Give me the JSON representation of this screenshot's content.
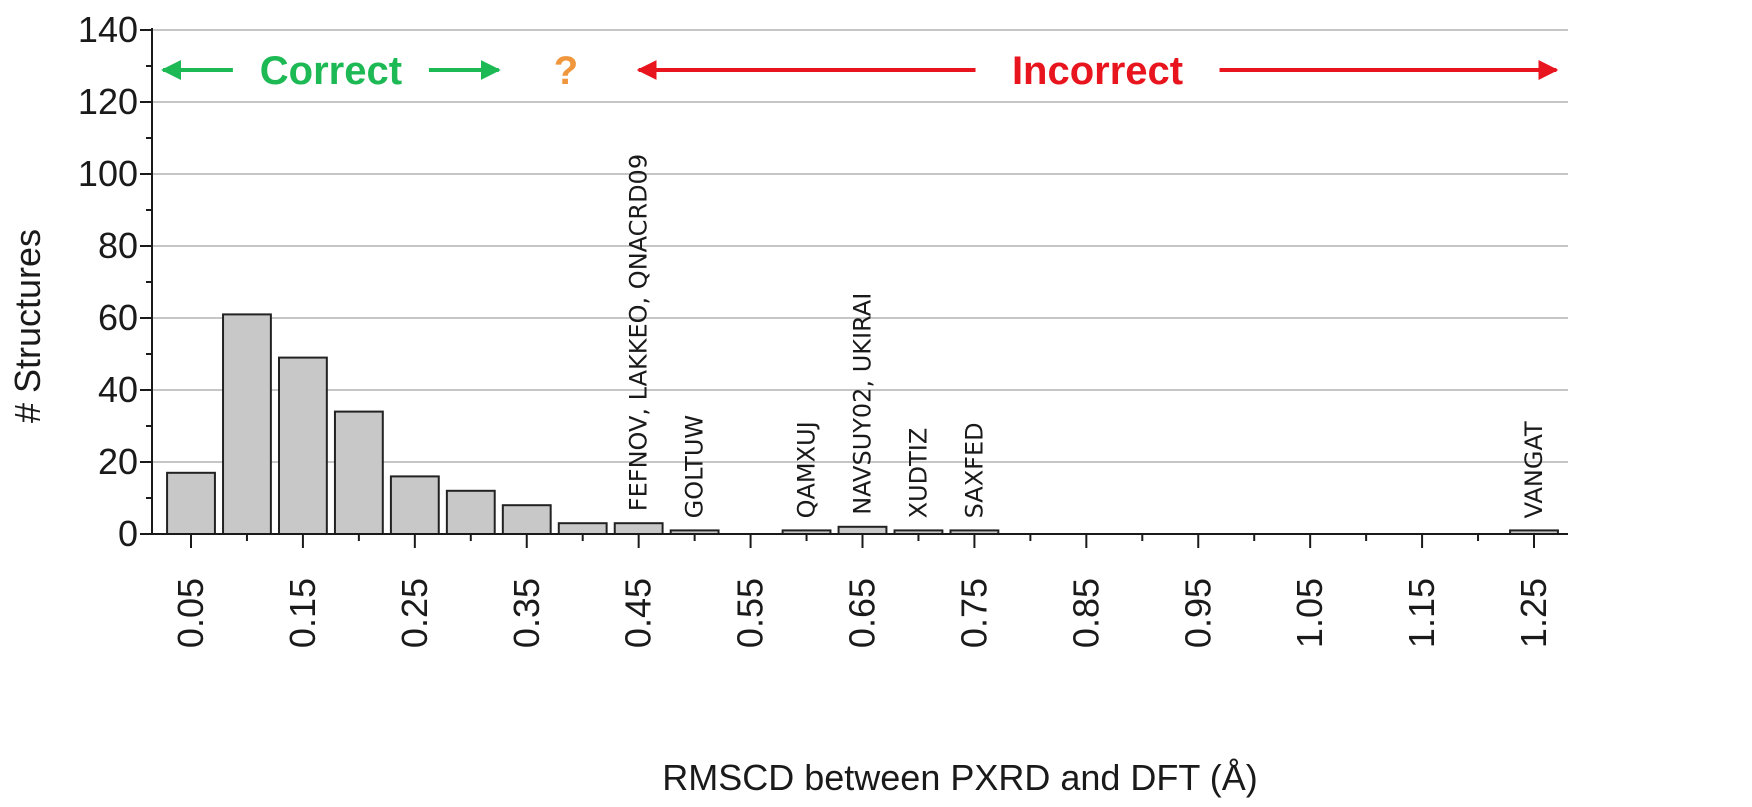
{
  "chart_data": {
    "type": "bar",
    "xlabel": "RMSCD between PXRD and DFT (Å)",
    "ylabel": "# Structures",
    "ylim": [
      0,
      140
    ],
    "yticks": [
      "0",
      "20",
      "40",
      "60",
      "80",
      "100",
      "120",
      "140"
    ],
    "xtick_labels": [
      "0.05",
      "0.15",
      "0.25",
      "0.35",
      "0.45",
      "0.55",
      "0.65",
      "0.75",
      "0.85",
      "0.95",
      "1.05",
      "1.15",
      "1.25"
    ],
    "grid": "horizontal",
    "bar_color": "#c8c8c8",
    "bars": [
      {
        "x": 0.05,
        "value": 17
      },
      {
        "x": 0.1,
        "value": 61
      },
      {
        "x": 0.15,
        "value": 49
      },
      {
        "x": 0.2,
        "value": 34
      },
      {
        "x": 0.25,
        "value": 16
      },
      {
        "x": 0.3,
        "value": 12
      },
      {
        "x": 0.35,
        "value": 8
      },
      {
        "x": 0.4,
        "value": 3
      },
      {
        "x": 0.45,
        "value": 3,
        "label": "FEFNOV, LAKKEO, QNACRD09"
      },
      {
        "x": 0.5,
        "value": 1,
        "label": "GOLTUW"
      },
      {
        "x": 0.6,
        "value": 1,
        "label": "QAMXUJ"
      },
      {
        "x": 0.65,
        "value": 2,
        "label": "NAVSUY02, UKIRAI"
      },
      {
        "x": 0.7,
        "value": 1,
        "label": "XUDTIZ"
      },
      {
        "x": 0.75,
        "value": 1,
        "label": "SAXFED"
      },
      {
        "x": 1.25,
        "value": 1,
        "label": "VANGAT"
      }
    ],
    "annotations": [
      {
        "text": "Correct",
        "color": "#1db954",
        "from_x": 0.025,
        "to_x": 0.325
      },
      {
        "text": "?",
        "color": "#f0963c",
        "at_x": 0.385
      },
      {
        "text": "Incorrect",
        "color": "#e8141e",
        "from_x": 0.45,
        "to_x": 1.27
      }
    ]
  }
}
